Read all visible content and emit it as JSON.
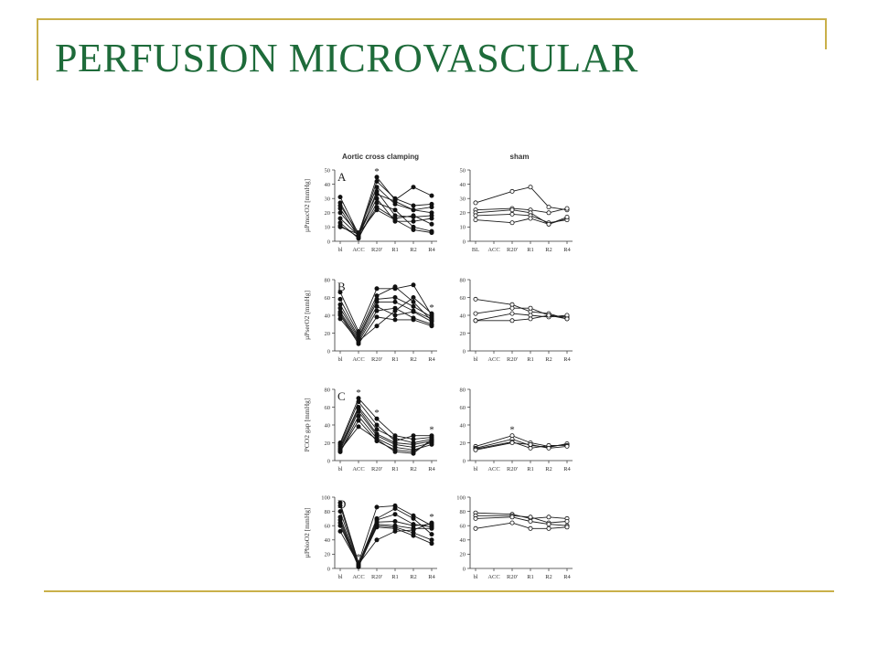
{
  "slide": {
    "title": "PERFUSION MICROVASCULAR",
    "colors": {
      "title": "#1e6b3a",
      "rule": "#c9b04a"
    }
  },
  "figure": {
    "column_titles": [
      "Aortic cross clamping",
      "sham"
    ]
  },
  "chart_data": [
    {
      "type": "line",
      "panel_label": "A",
      "group": "Aortic cross clamping",
      "ylabel": "µPmucO2 [mmHg]",
      "ylim": [
        0,
        50
      ],
      "yticks": [
        0,
        10,
        20,
        30,
        40,
        50
      ],
      "categories": [
        "bl",
        "ACC",
        "R20'",
        "R1",
        "R2",
        "R4"
      ],
      "marker": "filled",
      "significance": [
        false,
        false,
        true,
        false,
        false,
        false
      ],
      "series": [
        {
          "values": [
            31,
            5,
            45,
            29,
            38,
            32
          ]
        },
        {
          "values": [
            27,
            4,
            42,
            30,
            25,
            26
          ]
        },
        {
          "values": [
            25,
            6,
            38,
            26,
            22,
            24
          ]
        },
        {
          "values": [
            23,
            3,
            35,
            18,
            17,
            18
          ]
        },
        {
          "values": [
            20,
            5,
            33,
            28,
            22,
            20
          ]
        },
        {
          "values": [
            16,
            4,
            30,
            14,
            14,
            16
          ]
        },
        {
          "values": [
            13,
            2,
            27,
            22,
            10,
            7
          ]
        },
        {
          "values": [
            11,
            3,
            24,
            16,
            18,
            12
          ]
        },
        {
          "values": [
            10,
            5,
            22,
            15,
            8,
            6
          ]
        }
      ]
    },
    {
      "type": "line",
      "panel_label": "",
      "group": "sham",
      "ylim": [
        0,
        50
      ],
      "yticks": [
        0,
        10,
        20,
        30,
        40,
        50
      ],
      "categories": [
        "BL",
        "ACC",
        "R20'",
        "R1",
        "R2",
        "R4"
      ],
      "marker": "open",
      "significance": [
        false,
        false,
        false,
        false,
        false,
        false
      ],
      "series": [
        {
          "values": [
            27,
            null,
            35,
            38,
            24,
            22
          ]
        },
        {
          "values": [
            22,
            null,
            23,
            22,
            20,
            23
          ]
        },
        {
          "values": [
            20,
            null,
            22,
            20,
            12,
            16
          ]
        },
        {
          "values": [
            18,
            null,
            19,
            18,
            13,
            15
          ]
        },
        {
          "values": [
            15,
            null,
            13,
            16,
            12,
            17
          ]
        }
      ]
    },
    {
      "type": "line",
      "panel_label": "B",
      "group": "Aortic cross clamping",
      "ylabel": "µPserO2 [mmHg]",
      "ylim": [
        0,
        80
      ],
      "yticks": [
        0,
        20,
        40,
        60,
        80
      ],
      "categories": [
        "bl",
        "ACC",
        "R20'",
        "R1",
        "R2",
        "R4"
      ],
      "marker": "filled",
      "significance": [
        false,
        false,
        false,
        false,
        false,
        true
      ],
      "series": [
        {
          "values": [
            66,
            22,
            70,
            70,
            74,
            40
          ]
        },
        {
          "values": [
            58,
            19,
            62,
            72,
            55,
            34
          ]
        },
        {
          "values": [
            52,
            16,
            58,
            60,
            50,
            38
          ]
        },
        {
          "values": [
            48,
            14,
            55,
            55,
            45,
            36
          ]
        },
        {
          "values": [
            44,
            12,
            50,
            40,
            44,
            33
          ]
        },
        {
          "values": [
            42,
            10,
            45,
            48,
            37,
            30
          ]
        },
        {
          "values": [
            40,
            8,
            38,
            35,
            35,
            28
          ]
        },
        {
          "values": [
            36,
            11,
            28,
            45,
            60,
            42
          ]
        }
      ]
    },
    {
      "type": "line",
      "panel_label": "",
      "group": "sham",
      "ylim": [
        0,
        80
      ],
      "yticks": [
        0,
        20,
        40,
        60,
        80
      ],
      "categories": [
        "bl",
        "ACC",
        "R20'",
        "R1",
        "R2",
        "R4"
      ],
      "marker": "open",
      "significance": [
        false,
        false,
        false,
        false,
        false,
        false
      ],
      "series": [
        {
          "values": [
            58,
            null,
            52,
            44,
            42,
            36
          ]
        },
        {
          "values": [
            42,
            null,
            48,
            48,
            40,
            38
          ]
        },
        {
          "values": [
            34,
            null,
            42,
            40,
            38,
            40
          ]
        },
        {
          "values": [
            34,
            null,
            34,
            36,
            40,
            36
          ]
        }
      ]
    },
    {
      "type": "line",
      "panel_label": "C",
      "group": "Aortic cross clamping",
      "ylabel": "PCO2 gap [mmHg]",
      "ylim": [
        0,
        80
      ],
      "yticks": [
        0,
        20,
        40,
        60,
        80
      ],
      "categories": [
        "bl",
        "ACC",
        "R20'",
        "R1",
        "R2",
        "R4"
      ],
      "marker": "filled",
      "significance": [
        false,
        true,
        true,
        false,
        false,
        true
      ],
      "series": [
        {
          "values": [
            20,
            70,
            47,
            28,
            24,
            26
          ]
        },
        {
          "values": [
            18,
            66,
            40,
            22,
            28,
            28
          ]
        },
        {
          "values": [
            16,
            60,
            35,
            25,
            20,
            24
          ]
        },
        {
          "values": [
            14,
            58,
            30,
            20,
            18,
            22
          ]
        },
        {
          "values": [
            12,
            55,
            28,
            18,
            15,
            20
          ]
        },
        {
          "values": [
            10,
            50,
            25,
            15,
            12,
            18
          ]
        },
        {
          "values": [
            10,
            45,
            22,
            12,
            10,
            22
          ]
        },
        {
          "values": [
            12,
            38,
            24,
            10,
            8,
            24
          ]
        }
      ]
    },
    {
      "type": "line",
      "panel_label": "",
      "group": "sham",
      "ylim": [
        0,
        80
      ],
      "yticks": [
        0,
        20,
        40,
        60,
        80
      ],
      "categories": [
        "bl",
        "ACC",
        "R20'",
        "R1",
        "R2",
        "R4"
      ],
      "marker": "open",
      "significance": [
        false,
        false,
        true,
        false,
        false,
        false
      ],
      "series": [
        {
          "values": [
            16,
            null,
            28,
            20,
            16,
            18
          ]
        },
        {
          "values": [
            14,
            null,
            24,
            17,
            15,
            19
          ]
        },
        {
          "values": [
            13,
            null,
            21,
            14,
            17,
            17
          ]
        },
        {
          "values": [
            12,
            null,
            20,
            18,
            14,
            16
          ]
        }
      ]
    },
    {
      "type": "line",
      "panel_label": "D",
      "group": "Aortic cross clamping",
      "ylabel": "µPbioO2 [mmHg]",
      "ylim": [
        0,
        100
      ],
      "yticks": [
        0,
        20,
        40,
        60,
        80,
        100
      ],
      "categories": [
        "bl",
        "ACC",
        "R20'",
        "R1",
        "R2",
        "R4"
      ],
      "marker": "filled",
      "significance": [
        false,
        true,
        false,
        false,
        false,
        true
      ],
      "series": [
        {
          "values": [
            92,
            8,
            86,
            88,
            74,
            60
          ]
        },
        {
          "values": [
            88,
            6,
            70,
            84,
            70,
            48
          ]
        },
        {
          "values": [
            80,
            5,
            68,
            76,
            62,
            58
          ]
        },
        {
          "values": [
            72,
            4,
            65,
            66,
            60,
            62
          ]
        },
        {
          "values": [
            68,
            3,
            62,
            60,
            56,
            56
          ]
        },
        {
          "values": [
            64,
            2,
            60,
            58,
            50,
            40
          ]
        },
        {
          "values": [
            60,
            4,
            58,
            56,
            46,
            35
          ]
        },
        {
          "values": [
            52,
            6,
            40,
            52,
            54,
            64
          ]
        }
      ]
    },
    {
      "type": "line",
      "panel_label": "",
      "group": "sham",
      "ylim": [
        0,
        100
      ],
      "yticks": [
        0,
        20,
        40,
        60,
        80,
        100
      ],
      "categories": [
        "bl",
        "ACC",
        "R20'",
        "R1",
        "R2",
        "R4"
      ],
      "marker": "open",
      "significance": [
        false,
        false,
        false,
        false,
        false,
        false
      ],
      "series": [
        {
          "values": [
            78,
            null,
            76,
            70,
            72,
            70
          ]
        },
        {
          "values": [
            74,
            null,
            74,
            72,
            64,
            66
          ]
        },
        {
          "values": [
            70,
            null,
            72,
            66,
            62,
            60
          ]
        },
        {
          "values": [
            56,
            null,
            64,
            56,
            56,
            58
          ]
        }
      ]
    }
  ]
}
